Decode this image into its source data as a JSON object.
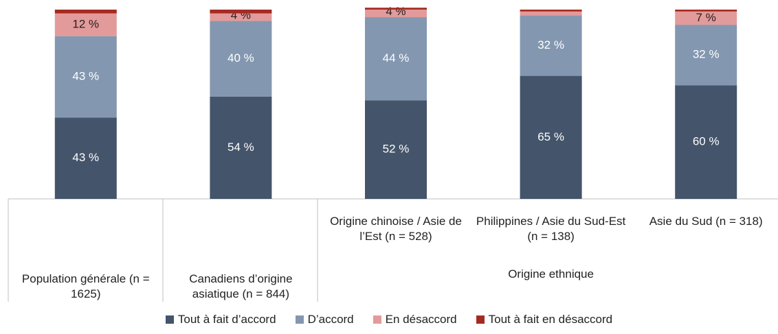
{
  "chart_data": {
    "type": "stacked_bar",
    "categories": [
      "Population générale (n = 1625)",
      "Canadiens d’origine asiatique (n = 844)",
      "Origine chinoise / Asie de l’Est (n = 528)",
      "Philippines / Asie du Sud-Est (n = 138)",
      "Asie du Sud (n = 318)"
    ],
    "group_label": "Origine ethnique",
    "ylim": [
      0,
      100
    ],
    "series": [
      {
        "name": "Tout à fait d’accord",
        "color": "#44546a",
        "label_color": "#ffffff",
        "values": [
          43,
          54,
          52,
          65,
          60
        ],
        "value_labels": [
          "43 %",
          "54 %",
          "52 %",
          "65 %",
          "60 %"
        ]
      },
      {
        "name": "D’accord",
        "color": "#8497b0",
        "label_color": "#ffffff",
        "values": [
          43,
          40,
          44,
          32,
          32
        ],
        "value_labels": [
          "43 %",
          "40 %",
          "44 %",
          "32 %",
          "32 %"
        ]
      },
      {
        "name": "En désaccord",
        "color": "#e39a9a",
        "label_color": "#222222",
        "values": [
          12,
          4,
          4,
          2,
          7
        ],
        "value_labels": [
          "12 %",
          "4 %",
          "4 %",
          null,
          "7 %"
        ]
      },
      {
        "name": "Tout à fait en désaccord",
        "color": "#a52a22",
        "values": [
          2,
          2,
          1,
          1,
          1
        ],
        "value_labels": [
          null,
          null,
          null,
          null,
          null
        ]
      }
    ]
  }
}
